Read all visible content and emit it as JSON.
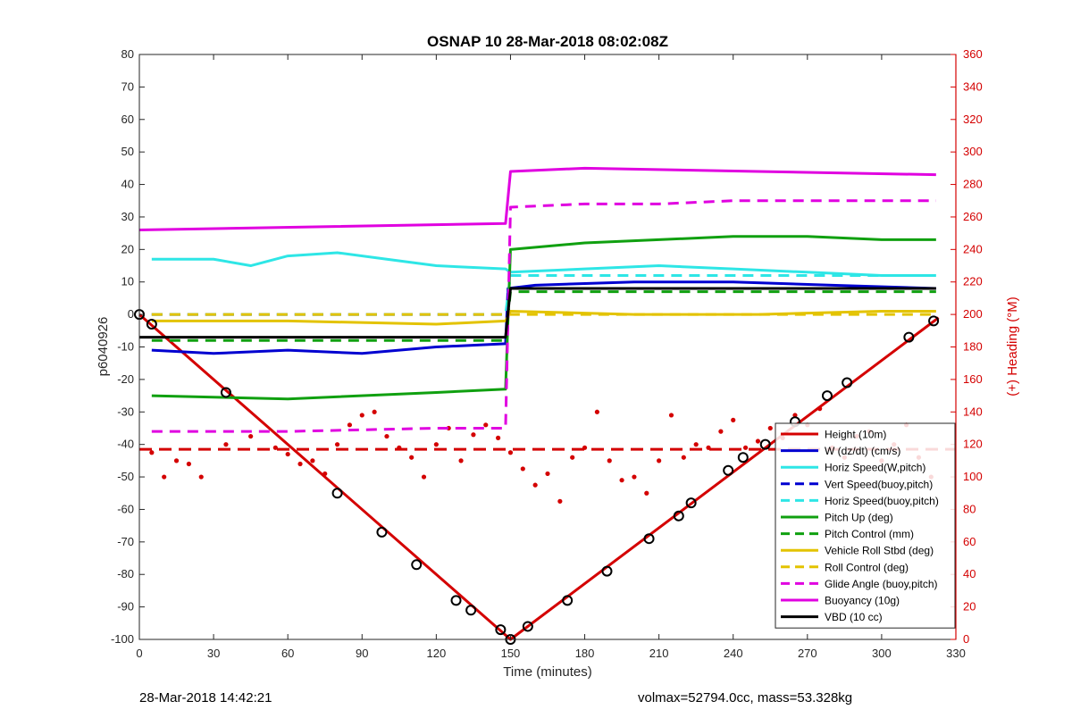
{
  "chart_data": {
    "type": "line",
    "title": "OSNAP 10 28-Mar-2018 08:02:08Z",
    "xlabel": "Time (minutes)",
    "ylabel_left": "p6040926",
    "ylabel_right": "(+) Heading (°M)",
    "xlim": [
      0,
      330
    ],
    "ylim_left": [
      -100,
      80
    ],
    "ylim_right": [
      0,
      360
    ],
    "x_ticks": [
      0,
      30,
      60,
      90,
      120,
      150,
      180,
      210,
      240,
      270,
      300,
      330
    ],
    "y_ticks_left": [
      -100,
      -90,
      -80,
      -70,
      -60,
      -50,
      -40,
      -30,
      -20,
      -10,
      0,
      10,
      20,
      30,
      40,
      50,
      60,
      70,
      80
    ],
    "y_ticks_right": [
      0,
      20,
      40,
      60,
      80,
      100,
      120,
      140,
      160,
      180,
      200,
      220,
      240,
      260,
      280,
      300,
      320,
      340,
      360
    ],
    "legend_position": "bottom-right",
    "series": [
      {
        "name": "Height (10m)",
        "color": "#d40000",
        "style": "solid",
        "x": [
          0,
          150,
          323
        ],
        "y": [
          0,
          -100,
          -1
        ]
      },
      {
        "name": "W (dz/dt) (cm/s)",
        "color": "#0000d0",
        "style": "solid",
        "x": [
          5,
          30,
          60,
          90,
          120,
          148,
          149,
          160,
          200,
          240,
          280,
          322
        ],
        "y": [
          -11,
          -12,
          -11,
          -12,
          -10,
          -9,
          8,
          9,
          10,
          10,
          9,
          8
        ]
      },
      {
        "name": "Horiz Speed(W,pitch)",
        "color": "#2ee6e6",
        "style": "solid",
        "x": [
          5,
          30,
          45,
          60,
          80,
          100,
          120,
          148,
          150,
          180,
          210,
          240,
          270,
          300,
          322
        ],
        "y": [
          17,
          17,
          15,
          18,
          19,
          17,
          15,
          14,
          13,
          14,
          15,
          14,
          13,
          12,
          12
        ]
      },
      {
        "name": "Vert Speed(buoy,pitch)",
        "color": "#0000d0",
        "style": "dashed",
        "x": [
          5,
          148,
          150,
          322
        ],
        "y": [
          0,
          0,
          8,
          8
        ]
      },
      {
        "name": "Horiz Speed(buoy,pitch)",
        "color": "#2ee6e6",
        "style": "dashed",
        "x": [
          5,
          148,
          150,
          322
        ],
        "y": [
          0,
          0,
          12,
          12
        ]
      },
      {
        "name": "Pitch Up (deg)",
        "color": "#10a010",
        "style": "solid",
        "x": [
          5,
          60,
          120,
          148,
          150,
          180,
          210,
          240,
          270,
          300,
          322
        ],
        "y": [
          -25,
          -26,
          -24,
          -23,
          20,
          22,
          23,
          24,
          24,
          23,
          23
        ]
      },
      {
        "name": "Pitch Control (mm)",
        "color": "#10a010",
        "style": "dashed",
        "x": [
          5,
          148,
          150,
          322
        ],
        "y": [
          -8,
          -8,
          7,
          7
        ]
      },
      {
        "name": "Vehicle Roll Stbd (deg)",
        "color": "#e3c300",
        "style": "solid",
        "x": [
          5,
          60,
          120,
          148,
          150,
          200,
          250,
          300,
          322
        ],
        "y": [
          -2,
          -2,
          -3,
          -2,
          1,
          0,
          0,
          1,
          1
        ]
      },
      {
        "name": "Roll Control (deg)",
        "color": "#e3c300",
        "style": "dashed",
        "x": [
          5,
          148,
          150,
          322
        ],
        "y": [
          0,
          0,
          0,
          0
        ]
      },
      {
        "name": "Glide Angle (buoy,pitch)",
        "color": "#e000e0",
        "style": "dashed",
        "x": [
          5,
          60,
          120,
          148,
          150,
          180,
          210,
          240,
          270,
          300,
          322
        ],
        "y": [
          -36,
          -36,
          -35,
          -35,
          33,
          34,
          34,
          35,
          35,
          35,
          35
        ]
      },
      {
        "name": "Buoyancy (10g)",
        "color": "#e000e0",
        "style": "solid",
        "x": [
          0,
          148,
          150,
          180,
          250,
          322
        ],
        "y": [
          26,
          28,
          44,
          45,
          44,
          43
        ]
      },
      {
        "name": "VBD (10 cc)",
        "color": "#000000",
        "style": "solid",
        "x": [
          0,
          148,
          150,
          322
        ],
        "y": [
          -7,
          -7,
          8,
          8
        ]
      }
    ],
    "heading_points_right_axis": {
      "color": "#d40000",
      "x": [
        5,
        10,
        15,
        20,
        25,
        35,
        45,
        55,
        60,
        65,
        70,
        75,
        80,
        85,
        90,
        95,
        100,
        105,
        110,
        115,
        120,
        125,
        130,
        135,
        140,
        145,
        150,
        155,
        160,
        165,
        170,
        175,
        180,
        185,
        190,
        195,
        200,
        205,
        210,
        215,
        220,
        225,
        230,
        235,
        240,
        245,
        250,
        255,
        260,
        265,
        270,
        275,
        280,
        285,
        290,
        295,
        300,
        305,
        310,
        315,
        320
      ],
      "y": [
        115,
        100,
        110,
        108,
        100,
        120,
        125,
        118,
        114,
        108,
        110,
        102,
        120,
        132,
        138,
        140,
        125,
        118,
        112,
        100,
        120,
        130,
        110,
        126,
        132,
        124,
        115,
        105,
        95,
        102,
        85,
        112,
        118,
        140,
        110,
        98,
        100,
        90,
        110,
        138,
        112,
        120,
        118,
        128,
        135,
        118,
        122,
        130,
        124,
        138,
        132,
        142,
        118,
        112,
        125,
        128,
        110,
        120,
        132,
        112,
        100
      ]
    },
    "heading_mean_line_right_axis": 117,
    "height_markers": {
      "x": [
        0,
        5,
        35,
        80,
        98,
        112,
        128,
        134,
        146,
        150,
        157,
        173,
        189,
        206,
        218,
        223,
        238,
        244,
        253,
        265,
        278,
        286,
        311,
        321
      ],
      "y": [
        0,
        -3,
        -24,
        -55,
        -67,
        -77,
        -88,
        -91,
        -97,
        -100,
        -96,
        -88,
        -79,
        -69,
        -62,
        -58,
        -48,
        -44,
        -40,
        -33,
        -25,
        -21,
        -7,
        -2
      ]
    }
  },
  "footer": {
    "left": "28-Mar-2018 14:42:21",
    "right": "volmax=52794.0cc, mass=53.328kg"
  }
}
